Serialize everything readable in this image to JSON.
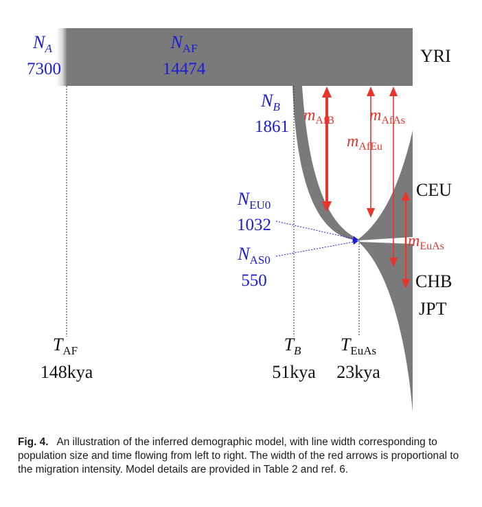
{
  "populations": {
    "yri": "YRI",
    "ceu": "CEU",
    "chb": "CHB",
    "jpt": "JPT"
  },
  "sizes": {
    "NA": {
      "sym": "N",
      "sub": "A",
      "value": "7300"
    },
    "NAF": {
      "sym": "N",
      "sub": "AF",
      "value": "14474"
    },
    "NB": {
      "sym": "N",
      "sub": "B",
      "value": "1861"
    },
    "NEU0": {
      "sym": "N",
      "sub": "EU0",
      "value": "1032"
    },
    "NAS0": {
      "sym": "N",
      "sub": "AS0",
      "value": "550"
    }
  },
  "migration": {
    "AfB": {
      "sym": "m",
      "sub": "AfB"
    },
    "AfAs": {
      "sym": "m",
      "sub": "AfAs"
    },
    "AfEu": {
      "sym": "m",
      "sub": "AfEu"
    },
    "EuAs": {
      "sym": "m",
      "sub": "EuAs"
    }
  },
  "times": {
    "TAF": {
      "sym": "T",
      "sub": "AF",
      "value": "148kya"
    },
    "TB": {
      "sym": "T",
      "sub": "B",
      "value": "51kya"
    },
    "TEuAs": {
      "sym": "T",
      "sub": "EuAs",
      "value": "23kya"
    }
  },
  "caption": {
    "label": "Fig. 4.",
    "text": "An illustration of the inferred demographic model, with line width corresponding to population size and time flowing from left to right. The width of the red arrows is proportional to the migration intensity. Model details are provided in Table 2 and ref. 6."
  },
  "colors": {
    "population": "#7a7a7a",
    "size_label": "#1c1cd6",
    "migration": "#e8342b"
  }
}
